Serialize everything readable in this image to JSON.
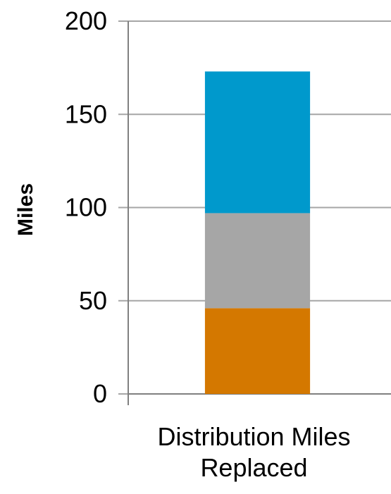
{
  "chart_data": {
    "type": "bar",
    "stacked": true,
    "categories": [
      "Distribution Miles\nReplaced"
    ],
    "series": [
      {
        "values": [
          46
        ],
        "color": "#D47800"
      },
      {
        "values": [
          51
        ],
        "color": "#A6A6A6"
      },
      {
        "values": [
          76
        ],
        "color": "#0099CC"
      }
    ],
    "ylabel": "Miles",
    "ylim": [
      0,
      200
    ],
    "yticks": [
      0,
      50,
      100,
      150,
      200
    ],
    "grid": true,
    "colors": {
      "gridline": "#A6A6A6",
      "axis": "#808080"
    }
  }
}
